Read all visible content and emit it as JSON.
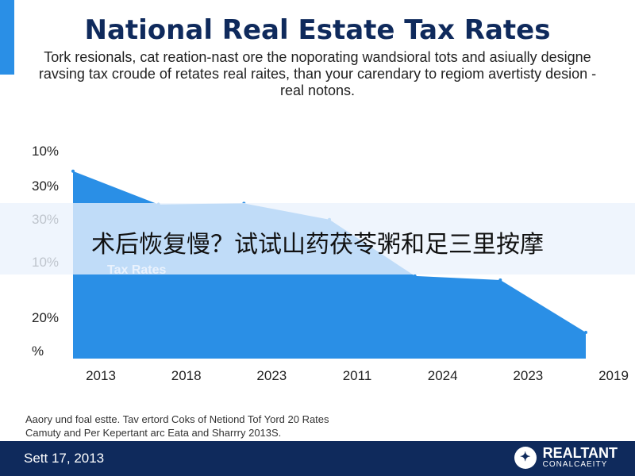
{
  "header": {
    "title": "National Real Estate Tax Rates",
    "subtitle": "Tork resionals, cat reation-nast ore the noporating wandsioral tots and asiually designe ravsing tax croude of retates real raites, than your carendary to regiom avertisty desion -real notons."
  },
  "banner": {
    "text": "术后恢复慢？试试山药茯苓粥和足三里按摩"
  },
  "chart_overlay": {
    "text": "Tax Rates"
  },
  "chart_data": {
    "type": "area",
    "x": [
      "2013",
      "2018",
      "2023",
      "2011",
      "2024",
      "2023",
      "2019"
    ],
    "y_tick_labels": [
      "10%",
      "30%",
      "30%",
      "10%",
      "20%",
      "%"
    ],
    "values": [
      0.93,
      0.765,
      0.77,
      0.69,
      0.41,
      0.39,
      0.13
    ],
    "value_note": "area height as fraction of the plotted 0–1 range",
    "color": "#2a8fe6",
    "title": "National Real Estate Tax Rates"
  },
  "note": {
    "line1": "Aaory und foal estte. Tav ertord Coks of Netiond Tof Yord 20 Rates",
    "line2": "Camuty and Per Kepertant arc Eata and Sharrry 2013S."
  },
  "footer": {
    "date": "Sett 17, 2013",
    "brand_name": "REALTANT",
    "brand_sub": "CONALCAEITY",
    "bg_color": "#0f2a5c"
  }
}
